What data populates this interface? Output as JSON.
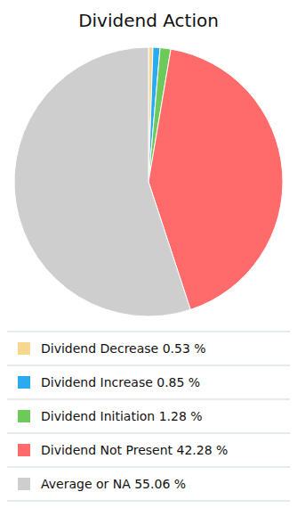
{
  "chart_data": {
    "type": "pie",
    "title": "Dividend Action",
    "categories": [
      "Dividend Decrease 0.53 %",
      "Dividend Increase 0.85 %",
      "Dividend Initiation 1.28 %",
      "Dividend Not Present 42.28 %",
      "Average or NA 55.06 %"
    ],
    "values": [
      0.53,
      0.85,
      1.28,
      42.28,
      55.06
    ],
    "colors": [
      "#F5D78E",
      "#2AABF0",
      "#6DC95A",
      "#FF6B6B",
      "#CECECE"
    ],
    "legend": "bottom"
  }
}
